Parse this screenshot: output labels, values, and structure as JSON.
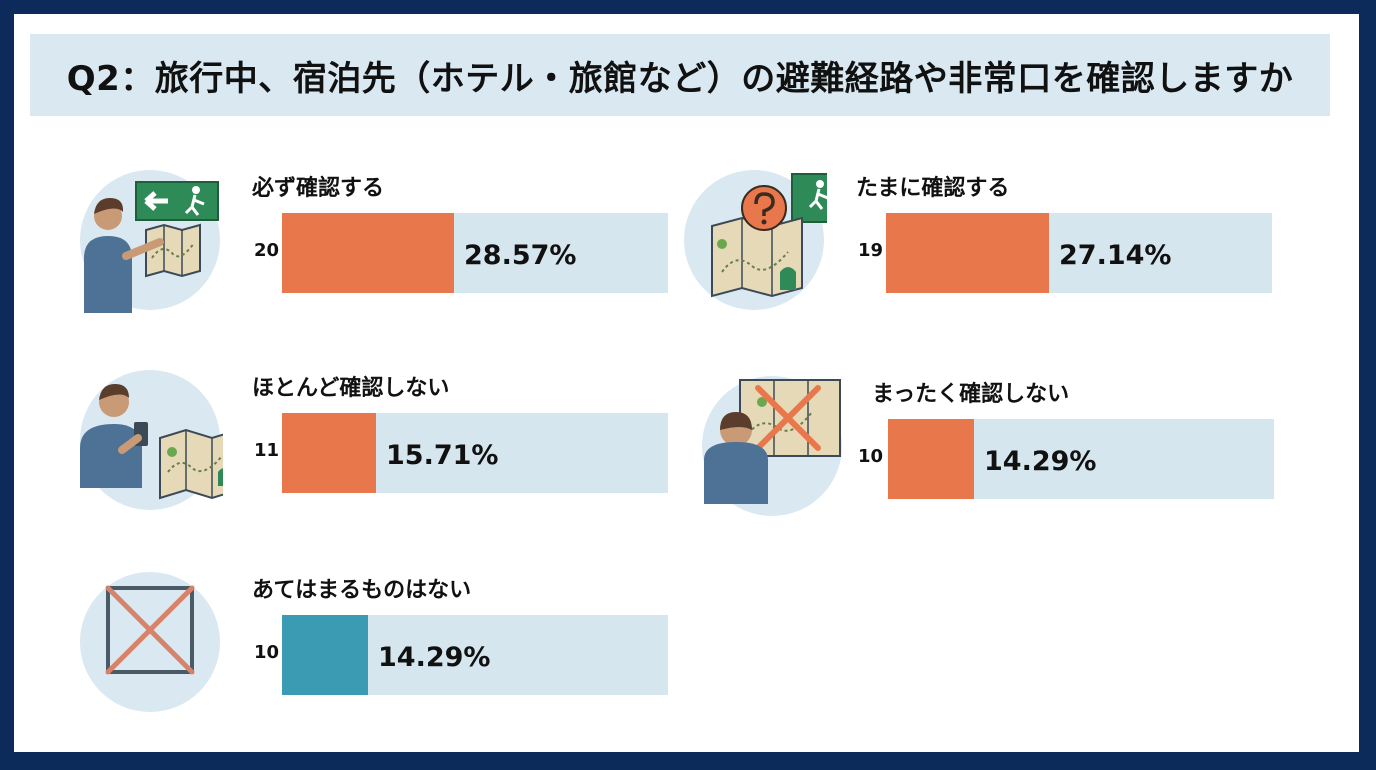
{
  "title": "Q2：旅行中、宿泊先（ホテル・旅館など）の避難経路や非常口を確認しますか",
  "colors": {
    "bar_main": "#e8774b",
    "bar_none": "#3a9bb3",
    "track": "#d6e6ee"
  },
  "items": [
    {
      "label": "必ず確認する",
      "count": "20",
      "percent_label": "28.57%",
      "icon": "person-map-exit-sign-icon"
    },
    {
      "label": "たまに確認する",
      "count": "19",
      "percent_label": "27.14%",
      "icon": "map-question-exit-sign-icon"
    },
    {
      "label": "ほとんど確認しない",
      "count": "11",
      "percent_label": "15.71%",
      "icon": "person-phone-map-icon"
    },
    {
      "label": "まったく確認しない",
      "count": "10",
      "percent_label": "14.29%",
      "icon": "person-crossed-map-icon"
    },
    {
      "label": "あてはまるものはない",
      "count": "10",
      "percent_label": "14.29%",
      "icon": "crossed-box-icon"
    }
  ],
  "chart_data": {
    "type": "bar",
    "title": "Q2：旅行中、宿泊先（ホテル・旅館など）の避難経路や非常口を確認しますか",
    "categories": [
      "必ず確認する",
      "たまに確認する",
      "ほとんど確認しない",
      "まったく確認しない",
      "あてはまるものはない"
    ],
    "values": [
      20,
      19,
      11,
      10,
      10
    ],
    "percentages": [
      28.57,
      27.14,
      15.71,
      14.29,
      14.29
    ],
    "bar_colors": [
      "#e8774b",
      "#e8774b",
      "#e8774b",
      "#e8774b",
      "#3a9bb3"
    ],
    "xlim": [
      0,
      45
    ],
    "grid": false,
    "legend": "none"
  }
}
